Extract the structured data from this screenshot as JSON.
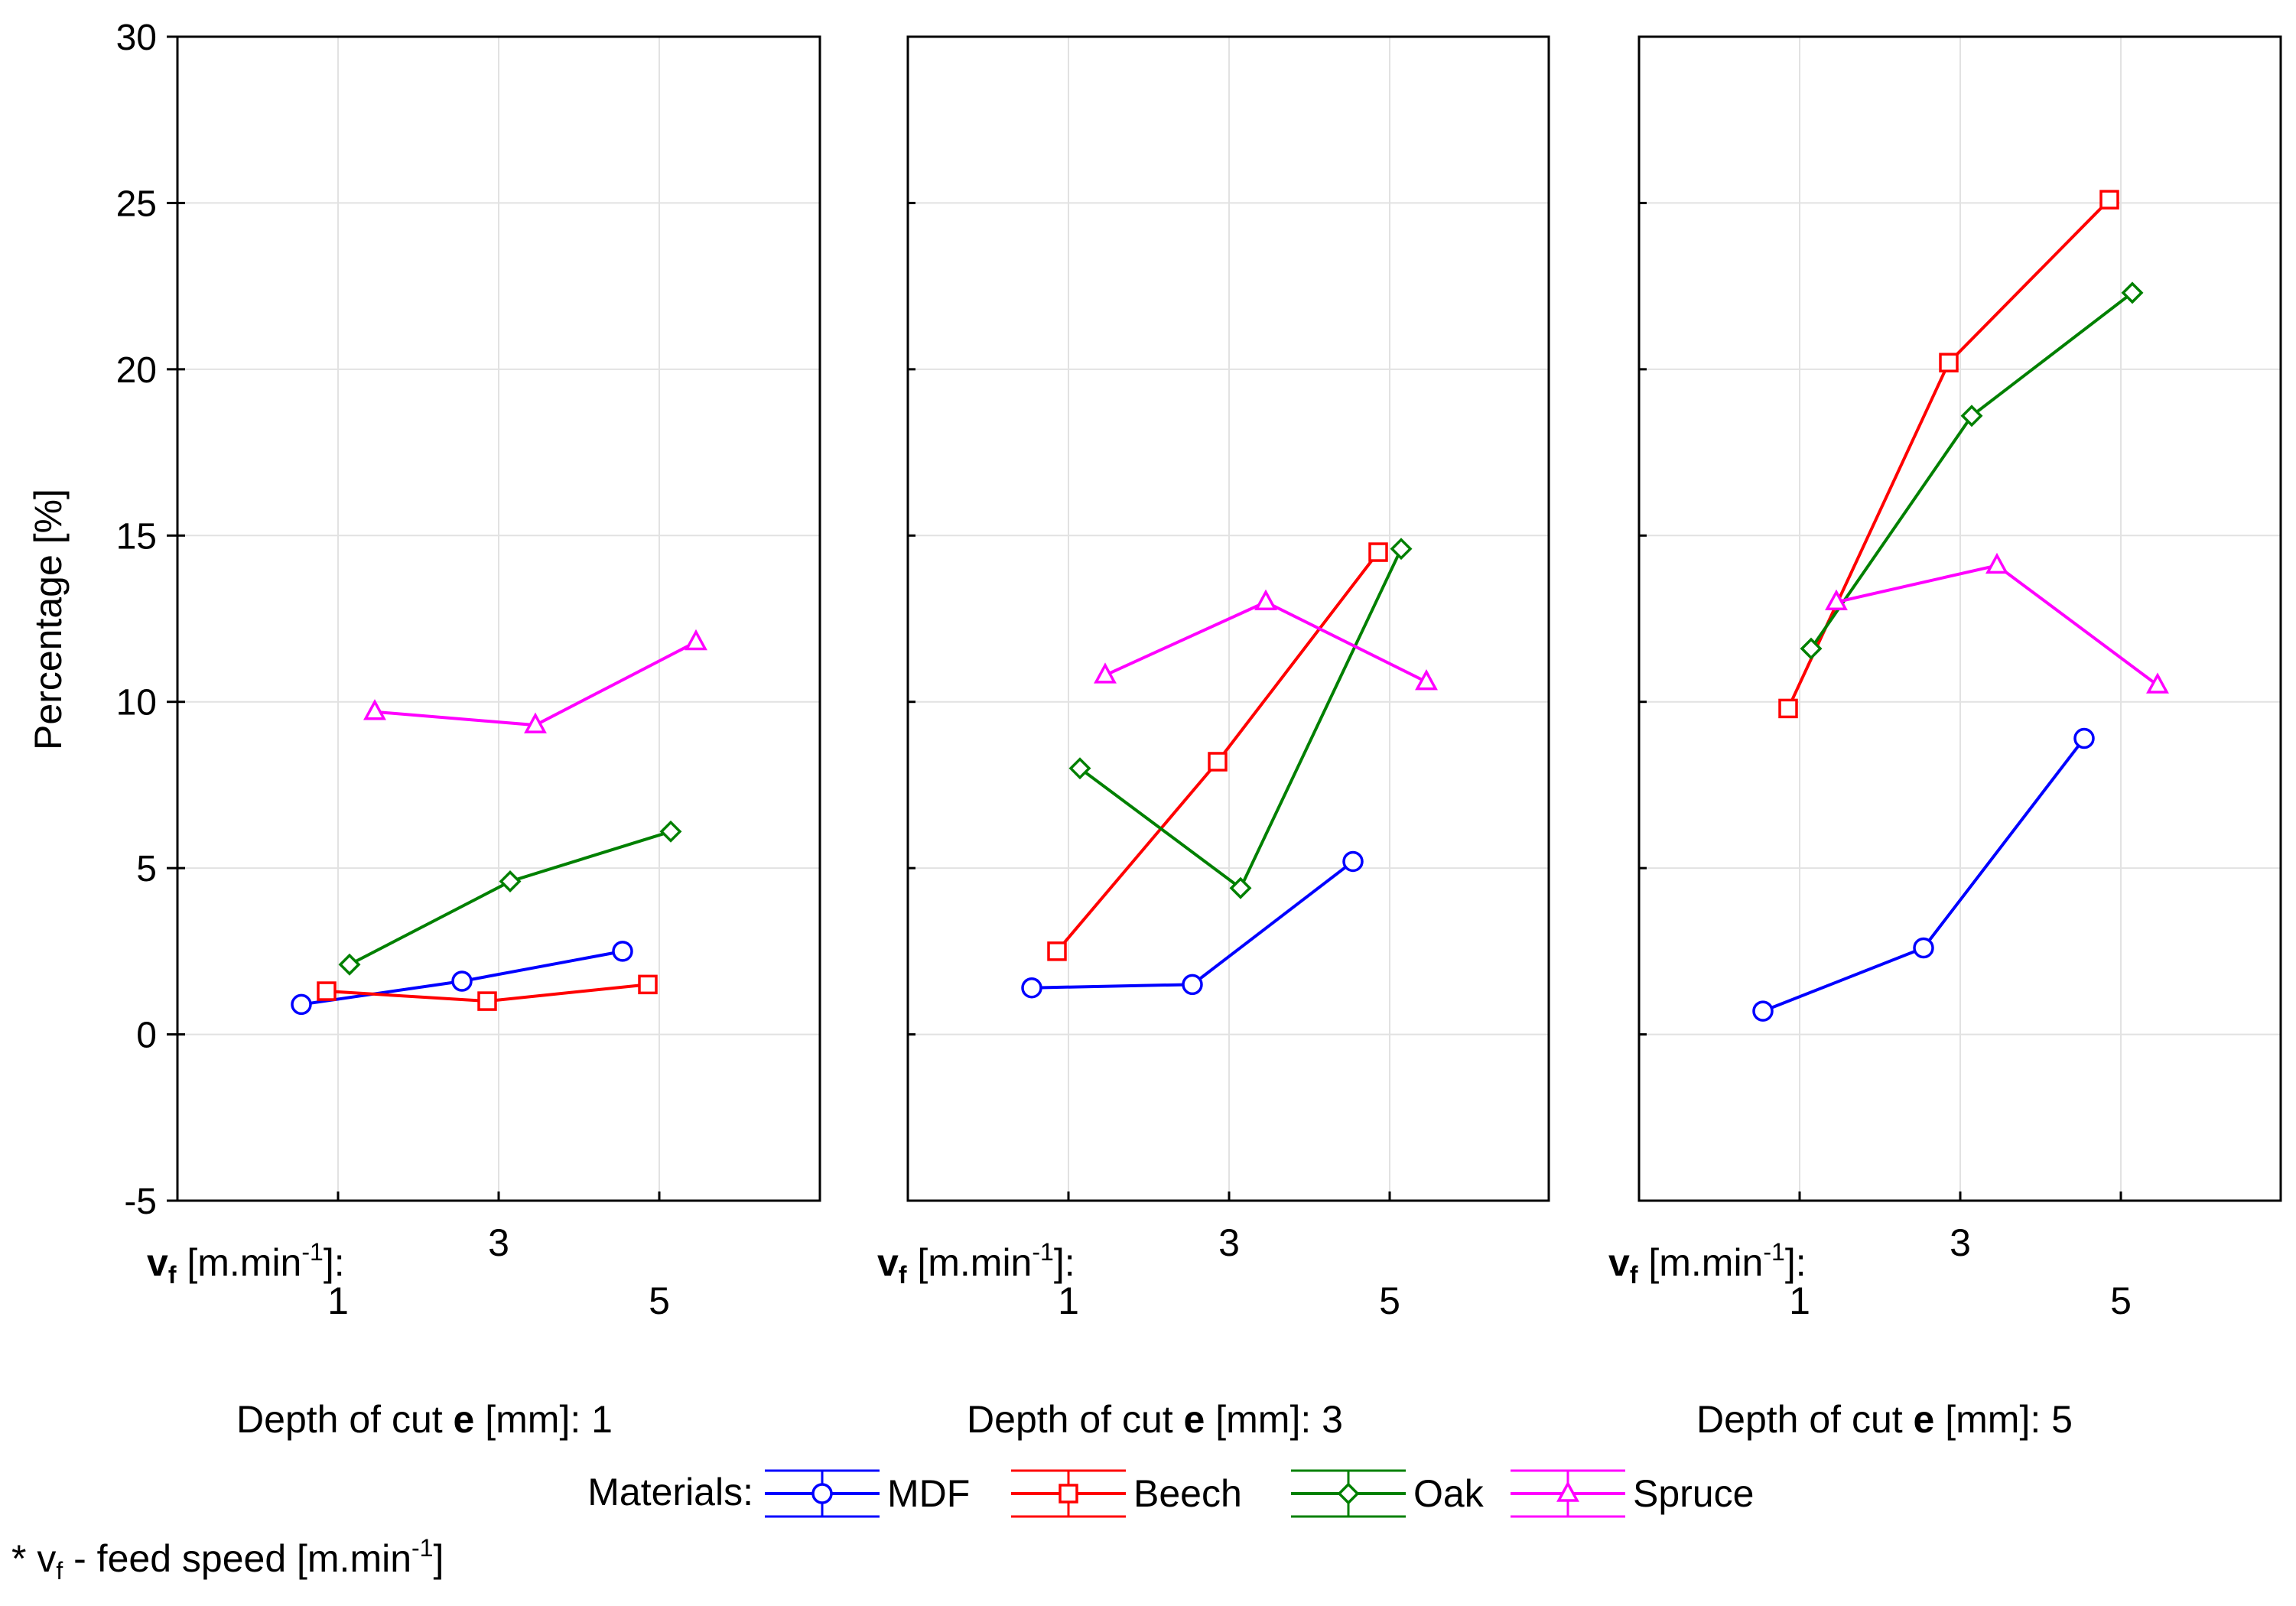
{
  "chart_data": {
    "type": "line",
    "ylabel": "Percentage [%]",
    "ylim": [
      -5,
      30
    ],
    "y_ticks": [
      "30",
      "25",
      "20",
      "15",
      "10",
      "5",
      "0",
      "-5"
    ],
    "x_factor_label": "v",
    "x_factor_sub": "f",
    "x_factor_unit": "[m.min",
    "x_factor_unit_exp": "-1",
    "x_factor_unit_end": "]:",
    "x_levels": [
      "1",
      "3",
      "5"
    ],
    "panels": [
      {
        "label_pre": "Depth of cut ",
        "label_bold": "e",
        "label_post": "  [mm]: 1"
      },
      {
        "label_pre": "Depth of cut ",
        "label_bold": "e",
        "label_post": "  [mm]: 3"
      },
      {
        "label_pre": "Depth of cut ",
        "label_bold": "e",
        "label_post": "  [mm]: 5"
      }
    ],
    "series": [
      {
        "name": "MDF",
        "color": "#0000ff",
        "marker": "circle",
        "values": [
          [
            0.9,
            1.6,
            2.5
          ],
          [
            1.4,
            1.5,
            5.2
          ],
          [
            0.7,
            2.6,
            8.9
          ]
        ]
      },
      {
        "name": "Beech",
        "color": "#ff0000",
        "marker": "square",
        "values": [
          [
            1.3,
            1.0,
            1.5
          ],
          [
            2.5,
            8.2,
            14.5
          ],
          [
            9.8,
            20.2,
            25.1
          ]
        ]
      },
      {
        "name": "Oak",
        "color": "#008000",
        "marker": "diamond",
        "values": [
          [
            2.1,
            4.6,
            6.1
          ],
          [
            8.0,
            4.4,
            14.6
          ],
          [
            11.6,
            18.6,
            22.3
          ]
        ]
      },
      {
        "name": "Spruce",
        "color": "#ff00ff",
        "marker": "triangle",
        "values": [
          [
            9.7,
            9.3,
            11.8
          ],
          [
            10.8,
            13.0,
            10.6
          ],
          [
            13.0,
            14.1,
            10.5
          ]
        ]
      }
    ],
    "legend_title": "Materials:",
    "footnote_star": "* v",
    "footnote_sub": "f",
    "footnote_text": " - feed speed  [m.min",
    "footnote_exp": "-1",
    "footnote_end": "]"
  }
}
